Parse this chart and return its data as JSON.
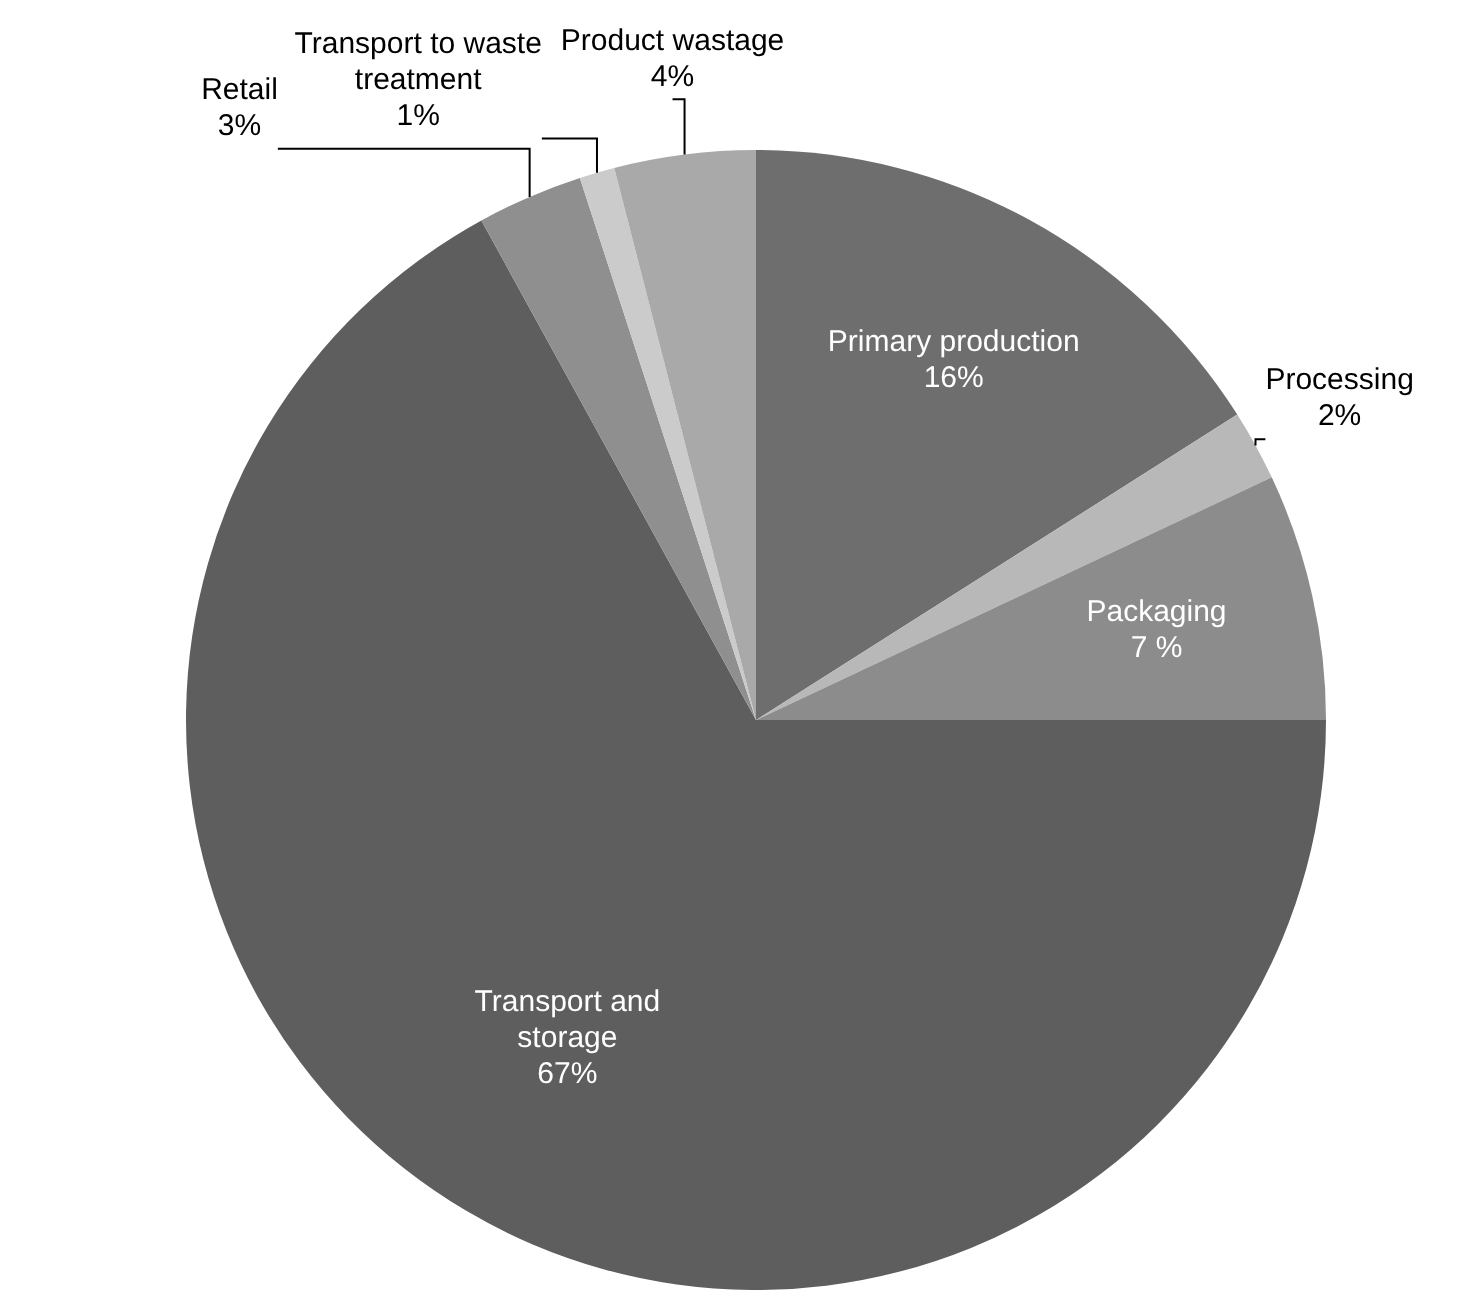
{
  "chart_data": {
    "type": "pie",
    "categories": [
      "Primary production",
      "Processing",
      "Packaging",
      "Transport and storage",
      "Retail",
      "Transport to waste treatment",
      "Product wastage"
    ],
    "values": [
      16,
      2,
      7,
      67,
      3,
      1,
      4
    ],
    "colors": [
      "#6e6e6e",
      "#b8b8b8",
      "#8c8c8c",
      "#5e5e5e",
      "#8f8f8f",
      "#cbcbcb",
      "#a9a9a9"
    ],
    "value_labels": [
      "16%",
      "2%",
      "7 %",
      "67%",
      "3%",
      "1%",
      "4%"
    ]
  }
}
